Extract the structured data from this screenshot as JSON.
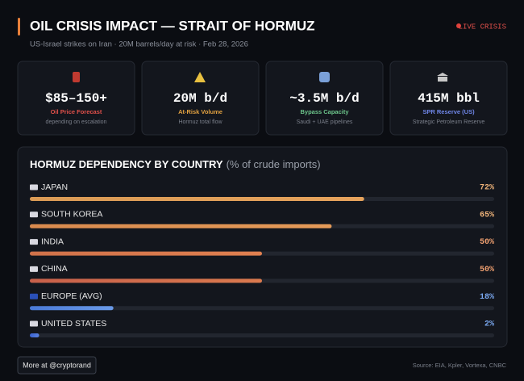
{
  "header": {
    "title": "OIL CRISIS IMPACT — STRAIT OF HORMUZ",
    "subtitle": "US-Israel strikes on Iran · 20M barrels/day at risk · Feb 28, 2026",
    "badge": "LIVE CRISIS"
  },
  "cards": [
    {
      "value": "$85–150+",
      "label": "Oil Price Forecast",
      "note": "depending on escalation",
      "color": "#e0504a"
    },
    {
      "value": "20M b/d",
      "label": "At-Risk Volume",
      "note": "Hormuz total flow",
      "color": "#e0a040"
    },
    {
      "value": "~3.5M b/d",
      "label": "Bypass Capacity",
      "note": "Saudi + UAE pipelines",
      "color": "#6cc48a"
    },
    {
      "value": "415M bbl",
      "label": "SPR Reserve (US)",
      "note": "Strategic Petroleum Reserve",
      "color": "#6f86e8"
    }
  ],
  "chart_data": {
    "type": "bar",
    "orientation": "horizontal",
    "title": "HORMUZ DEPENDENCY BY COUNTRY",
    "subtitle": "(% of crude imports)",
    "categories": [
      "JAPAN",
      "SOUTH KOREA",
      "INDIA",
      "CHINA",
      "EUROPE (AVG)",
      "UNITED STATES"
    ],
    "values": [
      72,
      65,
      50,
      50,
      18,
      2
    ],
    "value_labels": [
      "72%",
      "65%",
      "50%",
      "50%",
      "18%",
      "2%"
    ],
    "colors": [
      [
        "#d99a55",
        "#e6a35c"
      ],
      [
        "#d98a4e",
        "#e49a58"
      ],
      [
        "#d0724a",
        "#e08050"
      ],
      [
        "#c8604a",
        "#da7a4e"
      ],
      [
        "#4a7ad8",
        "#6a9ae8"
      ],
      [
        "#3a62d0",
        "#5a82e0"
      ]
    ],
    "label_colors": [
      "#f0b47a",
      "#f0b47a",
      "#f0a070",
      "#f0a070",
      "#7aa8f0",
      "#7aa8f0"
    ],
    "xlim": [
      0,
      100
    ]
  },
  "footer": {
    "button": "More at @cryptorand",
    "source": "Source: EIA, Kpler, Vortexa, CNBC"
  }
}
